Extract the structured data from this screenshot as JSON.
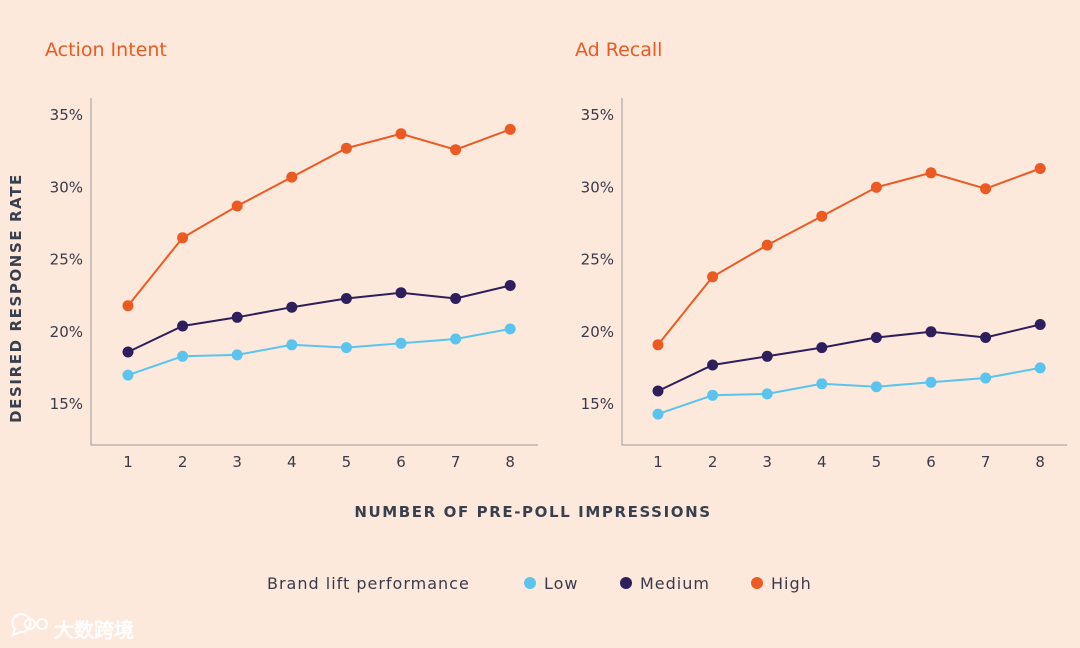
{
  "chart_data": {
    "type": "line",
    "shared_xlabel": "NUMBER OF PRE-POLL IMPRESSIONS",
    "shared_ylabel": "DESIRED RESPONSE RATE",
    "x": [
      1,
      2,
      3,
      4,
      5,
      6,
      7,
      8
    ],
    "x_tick_labels": [
      "1",
      "2",
      "3",
      "4",
      "5",
      "6",
      "7",
      "8"
    ],
    "ylim": [
      12,
      36
    ],
    "y_ticks": [
      15,
      20,
      25,
      30,
      35
    ],
    "y_tick_labels": [
      "15%",
      "20%",
      "25%",
      "30%",
      "35%"
    ],
    "colors": {
      "Low": "#5bc4ee",
      "Medium": "#2e1f5c",
      "High": "#ec5a24"
    },
    "legend": {
      "title": "Brand lift performance",
      "entries": [
        "Low",
        "Medium",
        "High"
      ],
      "placement": "bottom-center"
    },
    "panels": [
      {
        "title": "Action Intent",
        "series": [
          {
            "name": "Low",
            "values": [
              17.0,
              18.3,
              18.4,
              19.1,
              18.9,
              19.2,
              19.5,
              20.2
            ]
          },
          {
            "name": "Medium",
            "values": [
              18.6,
              20.4,
              21.0,
              21.7,
              22.3,
              22.7,
              22.3,
              23.2
            ]
          },
          {
            "name": "High",
            "values": [
              21.8,
              26.5,
              28.7,
              30.7,
              32.7,
              33.7,
              32.6,
              34.0
            ]
          }
        ]
      },
      {
        "title": "Ad Recall",
        "series": [
          {
            "name": "Low",
            "values": [
              14.3,
              15.6,
              15.7,
              16.4,
              16.2,
              16.5,
              16.8,
              17.5
            ]
          },
          {
            "name": "Medium",
            "values": [
              15.9,
              17.7,
              18.3,
              18.9,
              19.6,
              20.0,
              19.6,
              20.5
            ]
          },
          {
            "name": "High",
            "values": [
              19.1,
              23.8,
              26.0,
              28.0,
              30.0,
              31.0,
              29.9,
              31.3
            ]
          }
        ]
      }
    ]
  },
  "watermark": {
    "text": "大数跨境",
    "icon": "speech-bubble-icon"
  }
}
